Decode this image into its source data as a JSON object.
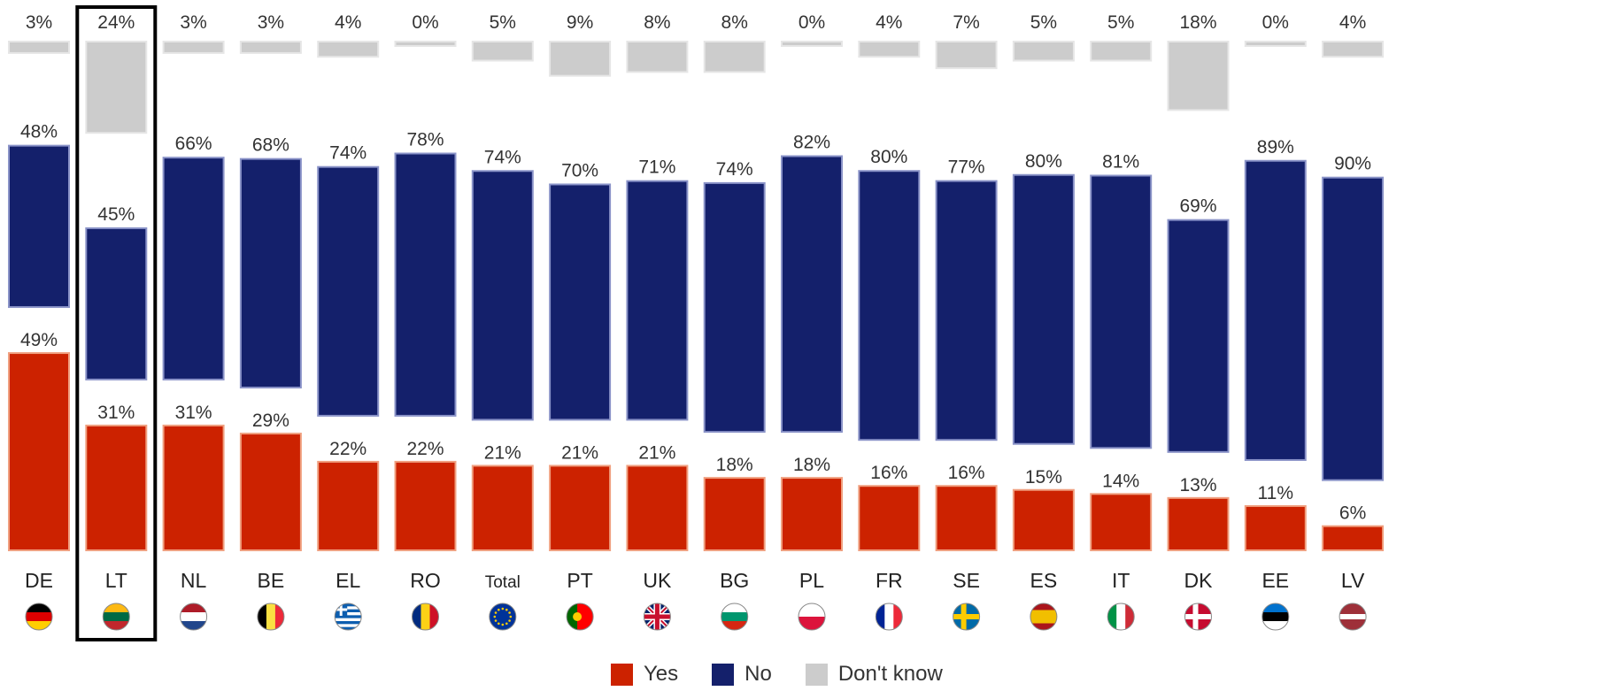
{
  "chart_data": {
    "type": "bar",
    "stacked": true,
    "categories": [
      "DE",
      "LT",
      "NL",
      "BE",
      "EL",
      "RO",
      "Total",
      "PT",
      "UK",
      "BG",
      "PL",
      "FR",
      "SE",
      "ES",
      "IT",
      "DK",
      "EE",
      "LV"
    ],
    "series": [
      {
        "name": "Yes",
        "color": "#cc2200",
        "values": [
          49,
          31,
          31,
          29,
          22,
          22,
          21,
          21,
          21,
          18,
          18,
          16,
          16,
          15,
          14,
          13,
          11,
          6
        ]
      },
      {
        "name": "No",
        "color": "#14206b",
        "values": [
          48,
          45,
          66,
          68,
          74,
          78,
          74,
          70,
          71,
          74,
          82,
          80,
          77,
          80,
          81,
          69,
          89,
          90
        ]
      },
      {
        "name": "Don't know",
        "color": "#cccccc",
        "values": [
          3,
          24,
          3,
          3,
          4,
          0,
          5,
          9,
          8,
          8,
          0,
          4,
          7,
          5,
          5,
          18,
          0,
          4
        ]
      }
    ],
    "value_suffix": "%",
    "highlighted_category": "LT",
    "legend_position": "bottom-center",
    "flags": {
      "DE": "germany-flag-icon",
      "LT": "lithuania-flag-icon",
      "NL": "netherlands-flag-icon",
      "BE": "belgium-flag-icon",
      "EL": "greece-flag-icon",
      "RO": "romania-flag-icon",
      "Total": "eu-flag-icon",
      "PT": "portugal-flag-icon",
      "UK": "uk-flag-icon",
      "BG": "bulgaria-flag-icon",
      "PL": "poland-flag-icon",
      "FR": "france-flag-icon",
      "SE": "sweden-flag-icon",
      "ES": "spain-flag-icon",
      "IT": "italy-flag-icon",
      "DK": "denmark-flag-icon",
      "EE": "estonia-flag-icon",
      "LV": "latvia-flag-icon"
    }
  },
  "legend": {
    "yes_label": "Yes",
    "no_label": "No",
    "dk_label": "Don't know"
  }
}
